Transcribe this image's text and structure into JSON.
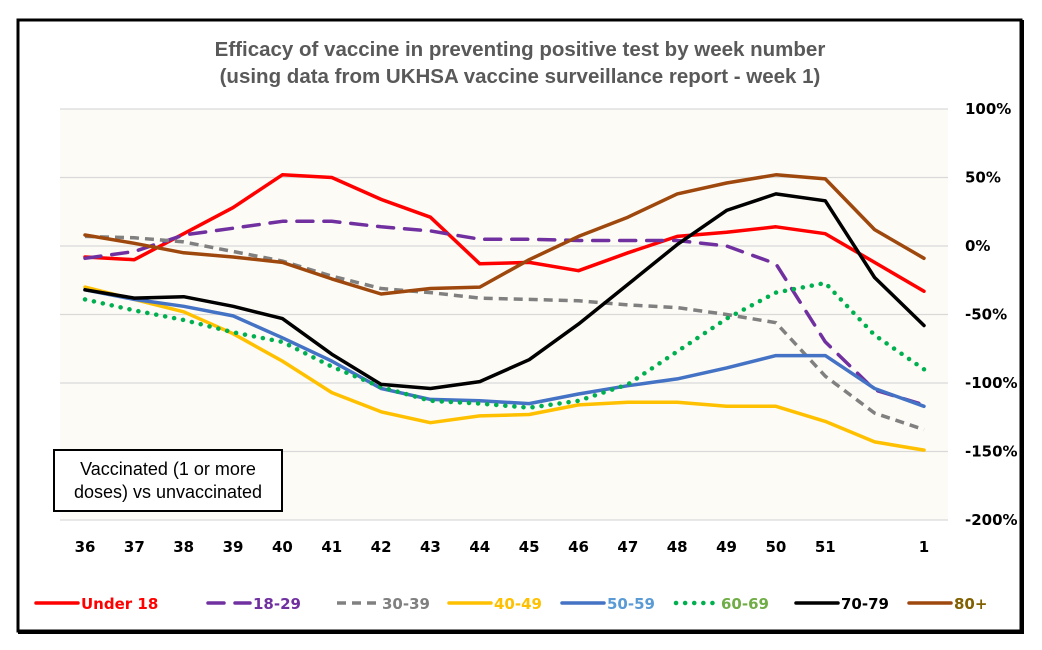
{
  "chart_data": {
    "type": "line",
    "title": "Efficacy of vaccine in preventing positive test by week number",
    "subtitle": "(using data from UKHSA vaccine surveillance report - week 1)",
    "xlabel": "",
    "ylabel": "",
    "categories": [
      "36",
      "37",
      "38",
      "39",
      "40",
      "41",
      "42",
      "43",
      "44",
      "45",
      "46",
      "47",
      "48",
      "49",
      "50",
      "51",
      "",
      "1"
    ],
    "y_axis": {
      "position": "right",
      "ylim": [
        -200,
        100
      ],
      "ticks": [
        100,
        50,
        0,
        -50,
        -100,
        -150,
        -200
      ],
      "tick_labels": [
        "100%",
        "50%",
        "0%",
        "-50%",
        "-100%",
        "-150%",
        "-200%"
      ]
    },
    "grid": true,
    "legend": "bottom",
    "annotation": "Vaccinated (1 or more doses) vs unvaccinated",
    "series": [
      {
        "name": "Under 18",
        "color": "#FF0000",
        "label_color": "#FF0000",
        "style": "solid",
        "values": [
          -8,
          -10,
          9,
          28,
          52,
          50,
          34,
          21,
          -13,
          -12,
          -18,
          -5,
          7,
          10,
          14,
          9,
          -12,
          -33
        ]
      },
      {
        "name": "18-29",
        "color": "#7030A0",
        "label_color": "#7030A0",
        "style": "dash",
        "values": [
          -9,
          -4,
          8,
          13,
          18,
          18,
          14,
          11,
          5,
          5,
          4,
          4,
          4,
          0,
          -13,
          -70,
          -105,
          -116
        ]
      },
      {
        "name": "30-39",
        "color": "#808080",
        "label_color": "#808080",
        "style": "shortdash",
        "values": [
          7,
          6,
          3,
          -4,
          -11,
          -22,
          -31,
          -34,
          -38,
          -39,
          -40,
          -43,
          -45,
          -50,
          -56,
          -95,
          -122,
          -134
        ]
      },
      {
        "name": "40-49",
        "color": "#FFC000",
        "label_color": "#FFC000",
        "style": "solid",
        "values": [
          -30,
          -39,
          -48,
          -64,
          -84,
          -107,
          -121,
          -129,
          -124,
          -123,
          -116,
          -114,
          -114,
          -117,
          -117,
          -128,
          -143,
          -149
        ]
      },
      {
        "name": "50-59",
        "color": "#4472C4",
        "label_color": "#5B9BD5",
        "style": "solid",
        "values": [
          -32,
          -39,
          -44,
          -51,
          -67,
          -84,
          -104,
          -112,
          -113,
          -115,
          -108,
          -102,
          -97,
          -89,
          -80,
          -80,
          -104,
          -117
        ]
      },
      {
        "name": "60-69",
        "color": "#00B050",
        "label_color": "#70AD47",
        "style": "dot",
        "values": [
          -39,
          -47,
          -54,
          -63,
          -70,
          -88,
          -103,
          -113,
          -115,
          -118,
          -113,
          -101,
          -77,
          -53,
          -34,
          -27,
          -65,
          -90
        ]
      },
      {
        "name": "70-79",
        "color": "#000000",
        "label_color": "#000000",
        "style": "solid",
        "values": [
          -32,
          -38,
          -37,
          -44,
          -53,
          -79,
          -101,
          -104,
          -99,
          -83,
          -57,
          -28,
          1,
          26,
          38,
          33,
          -23,
          -58
        ]
      },
      {
        "name": "80+",
        "color": "#9E480E",
        "label_color": "#806000",
        "style": "solid",
        "values": [
          8,
          2,
          -5,
          -8,
          -12,
          -24,
          -35,
          -31,
          -30,
          -10,
          7,
          21,
          38,
          46,
          52,
          49,
          12,
          -9
        ]
      }
    ]
  }
}
